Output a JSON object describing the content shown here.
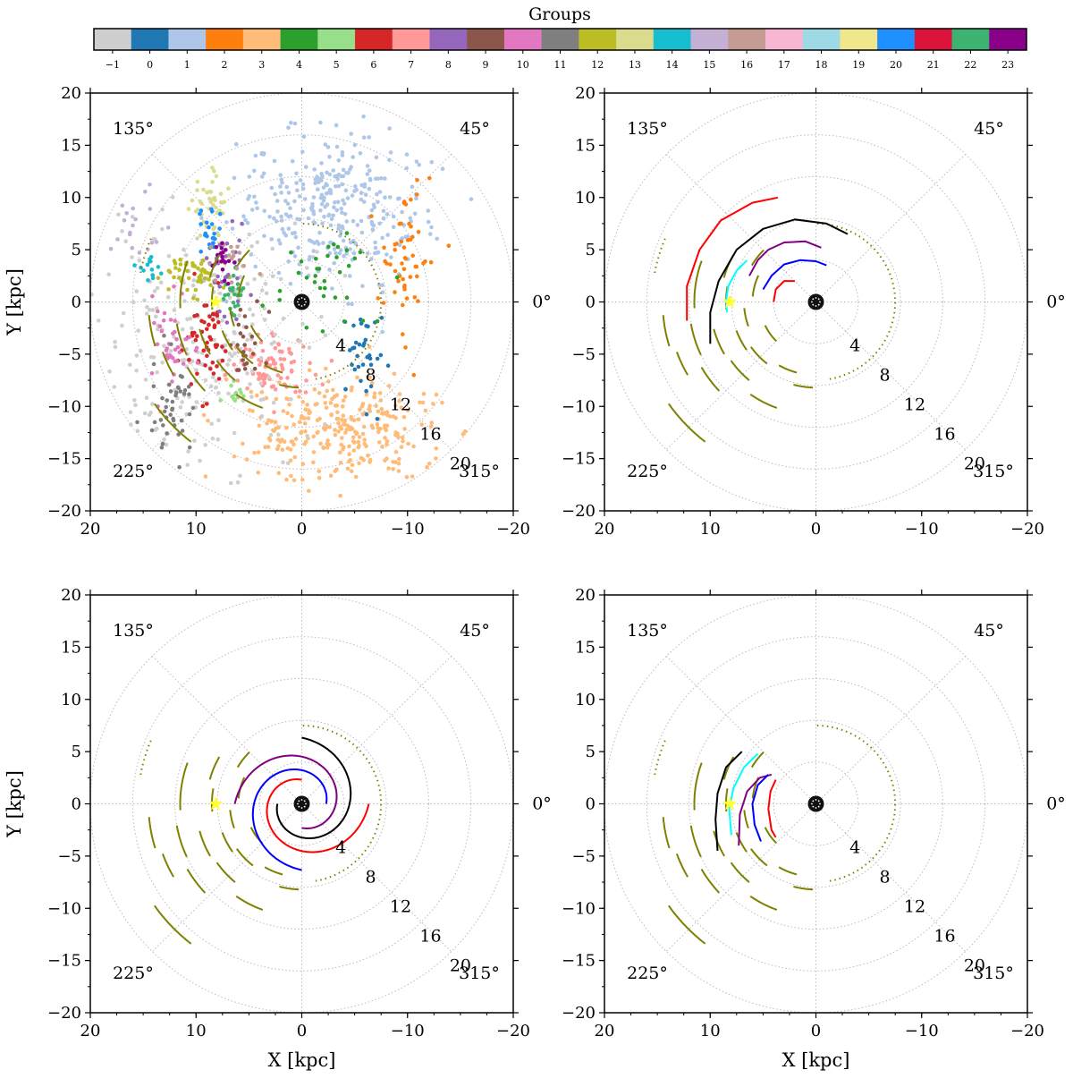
{
  "colorbar": {
    "title": "Groups",
    "labels": [
      "−1",
      "0",
      "1",
      "2",
      "3",
      "4",
      "5",
      "6",
      "7",
      "8",
      "9",
      "10",
      "11",
      "12",
      "13",
      "14",
      "15",
      "16",
      "17",
      "18",
      "19",
      "20",
      "21",
      "22",
      "23"
    ],
    "colors": [
      "#cfcfcf",
      "#1f77b4",
      "#aec7e8",
      "#ff7f0e",
      "#ffbb78",
      "#2ca02c",
      "#98df8a",
      "#d62728",
      "#ff9896",
      "#9467bd",
      "#8c564b",
      "#e377c2",
      "#7f7f7f",
      "#bcbd22",
      "#dbdb8d",
      "#17becf",
      "#c5b0d5",
      "#c49c94",
      "#f7b6d2",
      "#9edae5",
      "#f0e68c",
      "#1e90ff",
      "#dc143c",
      "#3cb371",
      "#8b008b"
    ]
  },
  "chart_data": [
    {
      "type": "scatter",
      "panel": "top-left",
      "xlabel": "",
      "ylabel": "Y [kpc]",
      "xlim": [
        20,
        -20
      ],
      "ylim": [
        -20,
        20
      ],
      "xticks": [
        "20",
        "10",
        "0",
        "−10",
        "−20"
      ],
      "yticks": [
        "20",
        "15",
        "10",
        "5",
        "0",
        "−5",
        "−10",
        "−15",
        "−20"
      ],
      "angle_labels": [
        "135°",
        "45°",
        "0°",
        "225°",
        "315°"
      ],
      "radius_labels": [
        "4",
        "8",
        "12",
        "16",
        "20"
      ],
      "grid_radii": [
        4,
        8,
        12,
        16,
        20
      ],
      "sun": [
        8.15,
        0
      ],
      "clouds": [
        {
          "group": 1,
          "color": "#aec7e8",
          "cx": -3,
          "cy": 9,
          "sx": 4.5,
          "sy": 3.5,
          "n": 320
        },
        {
          "group": 3,
          "color": "#ffbb78",
          "cx": -4,
          "cy": -12.5,
          "sx": 5.5,
          "sy": 2.5,
          "n": 300
        },
        {
          "group": 7,
          "color": "#ff9896",
          "cx": 3,
          "cy": -6,
          "sx": 2,
          "sy": 1.6,
          "n": 90
        },
        {
          "group": -1,
          "color": "#cfcfcf",
          "cx": 9,
          "cy": -4,
          "sx": 5,
          "sy": 6,
          "n": 260
        },
        {
          "group": 2,
          "color": "#ff7f0e",
          "cx": -10,
          "cy": 4,
          "sx": 1.3,
          "sy": 3.5,
          "n": 55
        },
        {
          "group": 0,
          "color": "#1f77b4",
          "cx": -5.5,
          "cy": -5,
          "sx": 1.2,
          "sy": 2.2,
          "n": 35
        },
        {
          "group": 4,
          "color": "#2ca02c",
          "cx": -1.5,
          "cy": 2,
          "sx": 2,
          "sy": 2.2,
          "n": 40
        },
        {
          "group": 13,
          "color": "#dbdb8d",
          "cx": 8.7,
          "cy": 9,
          "sx": 1,
          "sy": 1.6,
          "n": 45
        },
        {
          "group": 12,
          "color": "#bcbd22",
          "cx": 10,
          "cy": 2.6,
          "sx": 1.3,
          "sy": 1,
          "n": 50
        },
        {
          "group": 6,
          "color": "#d62728",
          "cx": 9,
          "cy": -3.8,
          "sx": 1,
          "sy": 2.5,
          "n": 55
        },
        {
          "group": 10,
          "color": "#e377c2",
          "cx": 12.5,
          "cy": -4.5,
          "sx": 1,
          "sy": 2.2,
          "n": 40
        },
        {
          "group": 11,
          "color": "#7f7f7f",
          "cx": 12,
          "cy": -10.5,
          "sx": 1.2,
          "sy": 2.5,
          "n": 45
        },
        {
          "group": 14,
          "color": "#17becf",
          "cx": 14.5,
          "cy": 3,
          "sx": 0.9,
          "sy": 1,
          "n": 14
        },
        {
          "group": 15,
          "color": "#c5b0d5",
          "cx": 16,
          "cy": 7.5,
          "sx": 1.5,
          "sy": 2,
          "n": 22
        },
        {
          "group": 8,
          "color": "#9467bd",
          "cx": 7,
          "cy": 2.5,
          "sx": 0.9,
          "sy": 2,
          "n": 30
        },
        {
          "group": 9,
          "color": "#8c564b",
          "cx": 5.5,
          "cy": -3.5,
          "sx": 0.8,
          "sy": 2,
          "n": 25
        },
        {
          "group": 20,
          "color": "#1e90ff",
          "cx": 8.6,
          "cy": 7,
          "sx": 0.5,
          "sy": 1.2,
          "n": 22
        },
        {
          "group": 22,
          "color": "#3cb371",
          "cx": 6.5,
          "cy": 1,
          "sx": 0.6,
          "sy": 1.5,
          "n": 25
        },
        {
          "group": 16,
          "color": "#c49c94",
          "cx": 6.5,
          "cy": 4.2,
          "sx": 1,
          "sy": 1,
          "n": 18
        },
        {
          "group": 23,
          "color": "#8b008b",
          "cx": 7.3,
          "cy": 3.8,
          "sx": 0.4,
          "sy": 1.2,
          "n": 18
        },
        {
          "group": 5,
          "color": "#98df8a",
          "cx": 6,
          "cy": -8.8,
          "sx": 0.6,
          "sy": 0.6,
          "n": 12
        }
      ]
    },
    {
      "type": "line",
      "panel": "top-right",
      "xlabel": "",
      "ylabel": "",
      "xlim": [
        20,
        -20
      ],
      "ylim": [
        -20,
        20
      ],
      "xticks": [
        "20",
        "10",
        "0",
        "−10",
        "−20"
      ],
      "yticks": [
        "20",
        "15",
        "10",
        "5",
        "0",
        "−5",
        "−10",
        "−15",
        "−20"
      ],
      "angle_labels": [
        "135°",
        "45°",
        "0°",
        "225°",
        "315°"
      ],
      "radius_labels": [
        "4",
        "8",
        "12",
        "16",
        "20"
      ],
      "sun": [
        8.15,
        0
      ],
      "series": [
        {
          "name": "red",
          "color": "#ff0000",
          "points": [
            [
              3.6,
              10
            ],
            [
              6,
              9.5
            ],
            [
              9,
              7.8
            ],
            [
              11,
              5
            ],
            [
              12.2,
              1.5
            ],
            [
              12.2,
              -1.8
            ]
          ]
        },
        {
          "name": "black",
          "color": "#000000",
          "points": [
            [
              -3,
              6.5
            ],
            [
              -1,
              7.5
            ],
            [
              2,
              7.9
            ],
            [
              5,
              7
            ],
            [
              7.5,
              5
            ],
            [
              9.2,
              2
            ],
            [
              10,
              -1
            ],
            [
              10,
              -4
            ]
          ]
        },
        {
          "name": "cyan",
          "color": "#00ffff",
          "points": [
            [
              6.5,
              4
            ],
            [
              7.5,
              3
            ],
            [
              8.3,
              1.5
            ],
            [
              8.5,
              0
            ],
            [
              8.4,
              -1
            ]
          ]
        },
        {
          "name": "purple",
          "color": "#800080",
          "points": [
            [
              -0.5,
              5.2
            ],
            [
              1,
              5.8
            ],
            [
              3,
              5.7
            ],
            [
              4.5,
              5
            ],
            [
              5.5,
              4
            ],
            [
              6.3,
              2.5
            ]
          ]
        },
        {
          "name": "blue",
          "color": "#0000ff",
          "points": [
            [
              -1,
              3.5
            ],
            [
              0,
              3.9
            ],
            [
              1.5,
              4
            ],
            [
              3,
              3.6
            ],
            [
              4.2,
              2.5
            ],
            [
              5,
              1.2
            ]
          ]
        },
        {
          "name": "red-inner",
          "color": "#ff0000",
          "points": [
            [
              2,
              2
            ],
            [
              3,
              2
            ],
            [
              3.8,
              1.2
            ],
            [
              4,
              0
            ]
          ]
        }
      ],
      "arcs": [
        {
          "r": 15.5,
          "a1": 157,
          "a2": 170,
          "dotted": true
        },
        {
          "r": 14.5,
          "a1": 185,
          "a2": 197
        },
        {
          "r": 14,
          "a1": 200,
          "a2": 210
        },
        {
          "r": 17,
          "a1": 215,
          "a2": 232
        },
        {
          "r": 11.5,
          "a1": 160,
          "a2": 183
        },
        {
          "r": 12,
          "a1": 190,
          "a2": 205
        },
        {
          "r": 12.5,
          "a1": 210,
          "a2": 223
        },
        {
          "r": 10,
          "a1": 195,
          "a2": 210
        },
        {
          "r": 9,
          "a1": 150,
          "a2": 165
        },
        {
          "r": 8.5,
          "a1": 170,
          "a2": 185
        },
        {
          "r": 8,
          "a1": 200,
          "a2": 215
        },
        {
          "r": 9.8,
          "a1": 215,
          "a2": 230
        },
        {
          "r": 10.8,
          "a1": 235,
          "a2": 250
        },
        {
          "r": 7,
          "a1": 135,
          "a2": 150
        },
        {
          "r": 6.8,
          "a1": 185,
          "a2": 200
        },
        {
          "r": 7.5,
          "a1": 215,
          "a2": 232
        },
        {
          "r": 7,
          "a1": 240,
          "a2": 255
        },
        {
          "r": 6,
          "a1": 155,
          "a2": 175
        },
        {
          "r": 5.3,
          "a1": 205,
          "a2": 225
        },
        {
          "r": 8.2,
          "a1": 255,
          "a2": 268
        },
        {
          "r": 7.5,
          "a1": -80,
          "a2": 90,
          "dotted": true
        }
      ]
    },
    {
      "type": "line",
      "panel": "bottom-left",
      "xlabel": "X [kpc]",
      "ylabel": "Y [kpc]",
      "xlim": [
        20,
        -20
      ],
      "ylim": [
        -20,
        20
      ],
      "xticks": [
        "20",
        "10",
        "0",
        "−10",
        "−20"
      ],
      "yticks": [
        "20",
        "15",
        "10",
        "5",
        "0",
        "−5",
        "−10",
        "−15",
        "−20"
      ],
      "angle_labels": [
        "135°",
        "45°",
        "0°",
        "225°",
        "315°"
      ],
      "radius_labels": [
        "4",
        "8",
        "12",
        "16",
        "20"
      ],
      "sun": [
        8.15,
        0
      ],
      "spirals": [
        {
          "name": "black",
          "color": "#000000",
          "r0": 2.3,
          "phi0": 0,
          "k": 0.215,
          "sweep": 270
        },
        {
          "name": "purple",
          "color": "#800080",
          "r0": 2.3,
          "phi0": 90,
          "k": 0.215,
          "sweep": 270
        },
        {
          "name": "blue",
          "color": "#0000ff",
          "r0": 2.3,
          "phi0": 180,
          "k": 0.215,
          "sweep": 270
        },
        {
          "name": "red",
          "color": "#ff0000",
          "r0": 2.3,
          "phi0": 270,
          "k": 0.215,
          "sweep": 270
        }
      ],
      "arcs_same_as": "top-right"
    },
    {
      "type": "line",
      "panel": "bottom-right",
      "xlabel": "X [kpc]",
      "ylabel": "",
      "xlim": [
        20,
        -20
      ],
      "ylim": [
        -20,
        20
      ],
      "xticks": [
        "20",
        "10",
        "0",
        "−10",
        "−20"
      ],
      "yticks": [
        "20",
        "15",
        "10",
        "5",
        "0",
        "−5",
        "−10",
        "−15",
        "−20"
      ],
      "angle_labels": [
        "135°",
        "45°",
        "0°",
        "225°",
        "315°"
      ],
      "radius_labels": [
        "4",
        "8",
        "12",
        "16",
        "20"
      ],
      "sun": [
        8.15,
        0
      ],
      "series": [
        {
          "name": "black",
          "color": "#000000",
          "points": [
            [
              7,
              5
            ],
            [
              8.5,
              3.5
            ],
            [
              9.3,
              1
            ],
            [
              9.5,
              -1.5
            ],
            [
              9.3,
              -4.5
            ]
          ]
        },
        {
          "name": "cyan",
          "color": "#00ffff",
          "points": [
            [
              5.5,
              4.8
            ],
            [
              6.8,
              3.5
            ],
            [
              7.8,
              1.5
            ],
            [
              8.2,
              -0.5
            ],
            [
              8,
              -3
            ]
          ]
        },
        {
          "name": "purple",
          "color": "#800080",
          "points": [
            [
              4.2,
              2.8
            ],
            [
              5.3,
              2.5
            ],
            [
              6.5,
              1.2
            ],
            [
              7.2,
              -1
            ],
            [
              7.3,
              -4
            ]
          ]
        },
        {
          "name": "blue",
          "color": "#0000ff",
          "points": [
            [
              4.5,
              2.8
            ],
            [
              5.5,
              1.8
            ],
            [
              6,
              0
            ],
            [
              5.8,
              -2
            ],
            [
              5.2,
              -3.6
            ]
          ]
        },
        {
          "name": "red",
          "color": "#ff0000",
          "points": [
            [
              3.8,
              2.3
            ],
            [
              4.3,
              1.2
            ],
            [
              4.5,
              -0.5
            ],
            [
              4.2,
              -2.5
            ],
            [
              3.8,
              -3.2
            ]
          ]
        }
      ],
      "arcs_same_as": "top-right"
    }
  ]
}
